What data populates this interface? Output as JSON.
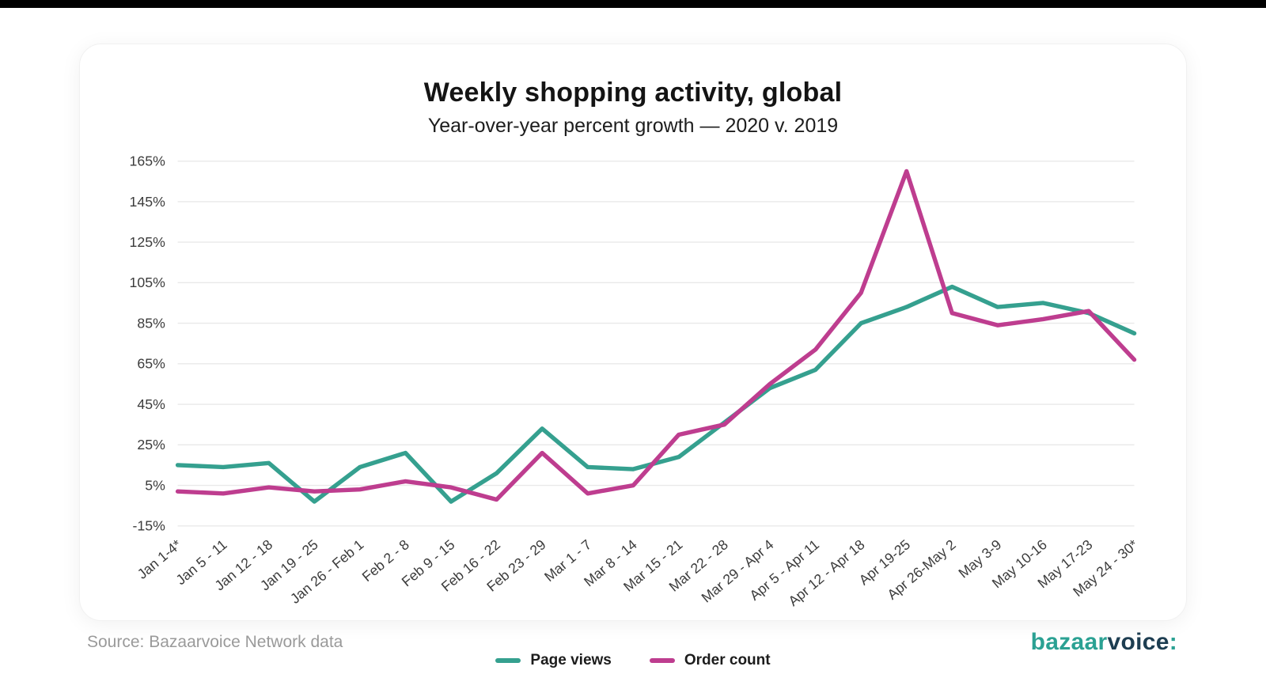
{
  "chart": {
    "title": "Weekly shopping activity, global",
    "subtitle": "Year-over-year percent growth — 2020 v. 2019"
  },
  "chart_data": {
    "type": "line",
    "categories": [
      "Jan 1-4*",
      "Jan 5 - 11",
      "Jan 12 - 18",
      "Jan 19 - 25",
      "Jan 26 - Feb 1",
      "Feb 2 - 8",
      "Feb 9 - 15",
      "Feb 16 - 22",
      "Feb 23 - 29",
      "Mar 1 - 7",
      "Mar 8 - 14",
      "Mar 15 - 21",
      "Mar 22 - 28",
      "Mar 29 - Apr 4",
      "Apr 5 - Apr 11",
      "Apr 12 - Apr 18",
      "Apr 19-25",
      "Apr 26-May 2",
      "May 3-9",
      "May 10-16",
      "May 17-23",
      "May 24 - 30*"
    ],
    "series": [
      {
        "name": "Page views",
        "color": "#35A violet",
        "values": []
      }
    ],
    "ylim": [
      -15,
      165
    ],
    "ytick_step": 20,
    "ytick_suffix": "%",
    "grid": true,
    "legend_position": "bottom",
    "gridline_color": "#e9e9e9",
    "tick_label_color": "#3c3c3c"
  },
  "footer": {
    "source": "Source: Bazaarvoice Network data",
    "logo": {
      "part1": "bazaar",
      "part2": "voice",
      "colon": ":"
    }
  }
}
